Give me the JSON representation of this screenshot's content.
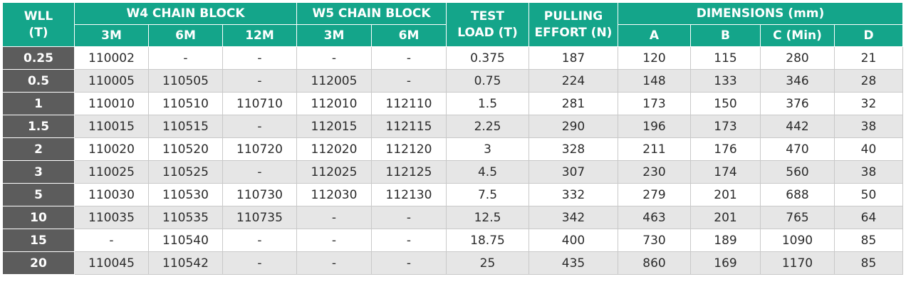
{
  "headers": {
    "wll_line1": "WLL",
    "wll_line2": "(T)",
    "w4_group": "W4 CHAIN BLOCK",
    "w5_group": "W5 CHAIN BLOCK",
    "test_line1": "TEST",
    "test_line2": "LOAD (T)",
    "pull_line1": "PULLING",
    "pull_line2": "EFFORT (N)",
    "dim_group": "DIMENSIONS (mm)",
    "w4_3m": "3M",
    "w4_6m": "6M",
    "w4_12m": "12M",
    "w5_3m": "3M",
    "w5_6m": "6M",
    "dim_a": "A",
    "dim_b": "B",
    "dim_c": "C (Min)",
    "dim_d": "D"
  },
  "rows": [
    [
      "0.25",
      "110002",
      "-",
      "-",
      "-",
      "-",
      "0.375",
      "187",
      "120",
      "115",
      "280",
      "21"
    ],
    [
      "0.5",
      "110005",
      "110505",
      "-",
      "112005",
      "-",
      "0.75",
      "224",
      "148",
      "133",
      "346",
      "28"
    ],
    [
      "1",
      "110010",
      "110510",
      "110710",
      "112010",
      "112110",
      "1.5",
      "281",
      "173",
      "150",
      "376",
      "32"
    ],
    [
      "1.5",
      "110015",
      "110515",
      "-",
      "112015",
      "112115",
      "2.25",
      "290",
      "196",
      "173",
      "442",
      "38"
    ],
    [
      "2",
      "110020",
      "110520",
      "110720",
      "112020",
      "112120",
      "3",
      "328",
      "211",
      "176",
      "470",
      "40"
    ],
    [
      "3",
      "110025",
      "110525",
      "-",
      "112025",
      "112125",
      "4.5",
      "307",
      "230",
      "174",
      "560",
      "38"
    ],
    [
      "5",
      "110030",
      "110530",
      "110730",
      "112030",
      "112130",
      "7.5",
      "332",
      "279",
      "201",
      "688",
      "50"
    ],
    [
      "10",
      "110035",
      "110535",
      "110735",
      "-",
      "-",
      "12.5",
      "342",
      "463",
      "201",
      "765",
      "64"
    ],
    [
      "15",
      "-",
      "110540",
      "-",
      "-",
      "-",
      "18.75",
      "400",
      "730",
      "189",
      "1090",
      "85"
    ],
    [
      "20",
      "110045",
      "110542",
      "-",
      "-",
      "-",
      "25",
      "435",
      "860",
      "169",
      "1170",
      "85"
    ]
  ],
  "colors": {
    "header_green": "#14a58a",
    "wll_gray": "#5c5c5c",
    "stripe_gray": "#e6e6e6"
  }
}
